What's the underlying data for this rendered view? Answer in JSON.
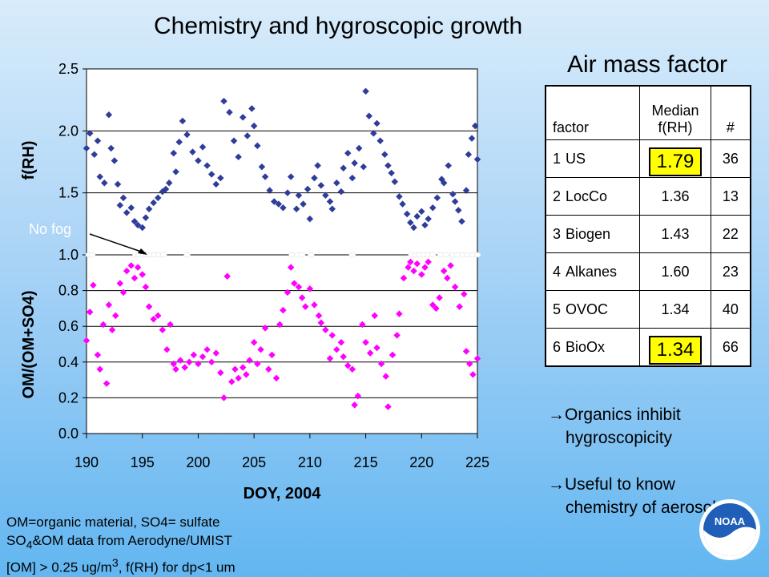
{
  "title": "Chemistry and hygroscopic growth",
  "air_mass": {
    "title": "Air mass factor",
    "headers": [
      "factor",
      "Median f(RH)",
      "#"
    ],
    "rows": [
      {
        "num": "1",
        "name": "US",
        "median": "1.79",
        "count": "36",
        "highlight": true
      },
      {
        "num": "2",
        "name": "LocCo",
        "median": "1.36",
        "count": "13",
        "highlight": false
      },
      {
        "num": "3",
        "name": "Biogen",
        "median": "1.43",
        "count": "22",
        "highlight": false
      },
      {
        "num": "4",
        "name": "Alkanes",
        "median": "1.60",
        "count": "23",
        "highlight": false
      },
      {
        "num": "5",
        "name": "OVOC",
        "median": "1.34",
        "count": "40",
        "highlight": false
      },
      {
        "num": "6",
        "name": "BioOx",
        "median": "1.34",
        "count": "66",
        "highlight": true
      }
    ]
  },
  "bullets": {
    "b1_line1": "Organics inhibit",
    "b1_line2": "hygroscopicity",
    "b2_line1": "Useful to know",
    "b2_line2": "chemistry of aerosol"
  },
  "notes": {
    "line1": "OM=organic material, SO4= sulfate",
    "line2_pre": "SO",
    "line2_sub": "4",
    "line2_post": "&OM data from Aerodyne/UMIST",
    "line3_pre": "[OM] > 0.25 ug/m",
    "line3_sup": "3",
    "line3_post": ",  f(RH) for dp<1 um"
  },
  "logo_text": "NOAA",
  "chart_data": {
    "type": "scatter",
    "xlabel": "DOY, 2004",
    "x_ticks": [
      190,
      195,
      200,
      205,
      210,
      215,
      220,
      225
    ],
    "xlim": [
      190,
      225
    ],
    "annotation": "No fog",
    "annotation_target": {
      "x": 195,
      "y": 1.0
    },
    "panels": [
      {
        "ylabel": "f(RH)",
        "ylim": [
          1.0,
          2.5
        ],
        "y_ticks": [
          "1.0",
          "1.5",
          "2.0",
          "2.5"
        ],
        "color": "#2e3d9a",
        "points": [
          [
            190,
            1.86
          ],
          [
            190.3,
            1.98
          ],
          [
            190.7,
            1.81
          ],
          [
            191,
            1.92
          ],
          [
            191.2,
            1.63
          ],
          [
            191.6,
            1.58
          ],
          [
            192,
            2.13
          ],
          [
            192.2,
            1.86
          ],
          [
            192.5,
            1.76
          ],
          [
            192.8,
            1.57
          ],
          [
            193,
            1.4
          ],
          [
            193.3,
            1.46
          ],
          [
            193.6,
            1.34
          ],
          [
            194,
            1.38
          ],
          [
            194.3,
            1.27
          ],
          [
            194.6,
            1.24
          ],
          [
            195,
            1.22
          ],
          [
            195.3,
            1.3
          ],
          [
            195.6,
            1.37
          ],
          [
            196,
            1.42
          ],
          [
            196.4,
            1.46
          ],
          [
            196.8,
            1.51
          ],
          [
            197.1,
            1.53
          ],
          [
            197.4,
            1.58
          ],
          [
            197.8,
            1.82
          ],
          [
            198,
            1.67
          ],
          [
            198.3,
            1.91
          ],
          [
            198.6,
            2.08
          ],
          [
            199,
            1.97
          ],
          [
            199.5,
            1.83
          ],
          [
            200,
            1.76
          ],
          [
            200.4,
            1.87
          ],
          [
            200.8,
            1.72
          ],
          [
            201.2,
            1.65
          ],
          [
            201.6,
            1.57
          ],
          [
            202,
            1.62
          ],
          [
            202.3,
            2.24
          ],
          [
            202.8,
            2.15
          ],
          [
            203.2,
            1.92
          ],
          [
            203.6,
            1.79
          ],
          [
            204,
            2.11
          ],
          [
            204.4,
            1.96
          ],
          [
            204.8,
            2.18
          ],
          [
            205,
            2.04
          ],
          [
            205.3,
            1.88
          ],
          [
            205.7,
            1.71
          ],
          [
            206,
            1.63
          ],
          [
            206.4,
            1.52
          ],
          [
            206.8,
            1.43
          ],
          [
            207.2,
            1.41
          ],
          [
            207.6,
            1.38
          ],
          [
            208,
            1.5
          ],
          [
            208.3,
            1.63
          ],
          [
            208.8,
            1.37
          ],
          [
            209,
            1.48
          ],
          [
            209.4,
            1.41
          ],
          [
            209.8,
            1.53
          ],
          [
            210,
            1.29
          ],
          [
            210.4,
            1.62
          ],
          [
            210.7,
            1.72
          ],
          [
            211,
            1.56
          ],
          [
            211.4,
            1.48
          ],
          [
            211.8,
            1.43
          ],
          [
            212,
            1.37
          ],
          [
            212.4,
            1.58
          ],
          [
            212.8,
            1.51
          ],
          [
            213,
            1.7
          ],
          [
            213.4,
            1.82
          ],
          [
            213.8,
            1.62
          ],
          [
            214,
            1.74
          ],
          [
            214.4,
            1.86
          ],
          [
            214.8,
            1.71
          ],
          [
            215,
            2.32
          ],
          [
            215.3,
            2.12
          ],
          [
            215.7,
            1.98
          ],
          [
            216,
            2.06
          ],
          [
            216.3,
            1.92
          ],
          [
            216.7,
            1.81
          ],
          [
            217,
            1.72
          ],
          [
            217.3,
            1.66
          ],
          [
            217.6,
            1.59
          ],
          [
            218,
            1.47
          ],
          [
            218.3,
            1.41
          ],
          [
            218.7,
            1.33
          ],
          [
            219,
            1.26
          ],
          [
            219.3,
            1.22
          ],
          [
            219.6,
            1.31
          ],
          [
            220,
            1.35
          ],
          [
            220.3,
            1.24
          ],
          [
            220.6,
            1.29
          ],
          [
            221,
            1.38
          ],
          [
            221.4,
            1.46
          ],
          [
            221.8,
            1.61
          ],
          [
            222,
            1.58
          ],
          [
            222.4,
            1.72
          ],
          [
            222.8,
            1.49
          ],
          [
            223,
            1.43
          ],
          [
            223.3,
            1.36
          ],
          [
            223.6,
            1.27
          ],
          [
            224,
            1.52
          ],
          [
            224.2,
            1.81
          ],
          [
            224.5,
            1.94
          ],
          [
            224.8,
            2.04
          ],
          [
            225,
            1.77
          ]
        ]
      },
      {
        "ylabel": "OM/(OM+SO4)",
        "ylim": [
          0.0,
          1.0
        ],
        "y_ticks": [
          "0.0",
          "0.2",
          "0.4",
          "0.6",
          "0.8",
          "1.0"
        ],
        "color": "#ff00ff",
        "points": [
          [
            190,
            0.52
          ],
          [
            190.3,
            0.68
          ],
          [
            190.6,
            0.83
          ],
          [
            191,
            0.44
          ],
          [
            191.2,
            0.36
          ],
          [
            191.5,
            0.61
          ],
          [
            191.8,
            0.28
          ],
          [
            192,
            0.72
          ],
          [
            192.3,
            0.58
          ],
          [
            192.6,
            0.66
          ],
          [
            193,
            0.84
          ],
          [
            193.3,
            0.79
          ],
          [
            193.6,
            0.91
          ],
          [
            194,
            0.94
          ],
          [
            194.3,
            0.87
          ],
          [
            194.6,
            0.93
          ],
          [
            195,
            0.89
          ],
          [
            195.3,
            0.82
          ],
          [
            195.6,
            0.71
          ],
          [
            196,
            0.64
          ],
          [
            196.4,
            0.66
          ],
          [
            196.8,
            0.58
          ],
          [
            197.2,
            0.47
          ],
          [
            197.5,
            0.61
          ],
          [
            197.8,
            0.39
          ],
          [
            198,
            0.36
          ],
          [
            198.4,
            0.41
          ],
          [
            198.8,
            0.37
          ],
          [
            199.2,
            0.4
          ],
          [
            199.6,
            0.44
          ],
          [
            200,
            0.39
          ],
          [
            200.4,
            0.43
          ],
          [
            200.8,
            0.47
          ],
          [
            201.2,
            0.4
          ],
          [
            201.6,
            0.45
          ],
          [
            202,
            0.34
          ],
          [
            202.3,
            0.2
          ],
          [
            202.6,
            0.88
          ],
          [
            203,
            0.29
          ],
          [
            203.3,
            0.36
          ],
          [
            203.6,
            0.31
          ],
          [
            204,
            0.37
          ],
          [
            204.3,
            0.33
          ],
          [
            204.6,
            0.41
          ],
          [
            205,
            0.51
          ],
          [
            205.3,
            0.39
          ],
          [
            205.6,
            0.47
          ],
          [
            206,
            0.59
          ],
          [
            206.3,
            0.36
          ],
          [
            206.6,
            0.44
          ],
          [
            207,
            0.31
          ],
          [
            207.3,
            0.61
          ],
          [
            207.6,
            0.69
          ],
          [
            208,
            0.79
          ],
          [
            208.3,
            0.93
          ],
          [
            208.6,
            0.84
          ],
          [
            209,
            0.82
          ],
          [
            209.3,
            0.76
          ],
          [
            209.6,
            0.71
          ],
          [
            210,
            0.81
          ],
          [
            210.4,
            0.72
          ],
          [
            210.8,
            0.66
          ],
          [
            211,
            0.62
          ],
          [
            211.4,
            0.58
          ],
          [
            211.8,
            0.42
          ],
          [
            212,
            0.55
          ],
          [
            212.4,
            0.47
          ],
          [
            212.8,
            0.51
          ],
          [
            213,
            0.43
          ],
          [
            213.4,
            0.38
          ],
          [
            213.8,
            0.36
          ],
          [
            214,
            0.16
          ],
          [
            214.3,
            0.21
          ],
          [
            214.7,
            0.61
          ],
          [
            215,
            0.51
          ],
          [
            215.4,
            0.45
          ],
          [
            215.8,
            0.66
          ],
          [
            216,
            0.48
          ],
          [
            216.4,
            0.39
          ],
          [
            216.8,
            0.32
          ],
          [
            217,
            0.15
          ],
          [
            217.4,
            0.44
          ],
          [
            217.8,
            0.55
          ],
          [
            218,
            0.67
          ],
          [
            218.4,
            0.87
          ],
          [
            218.8,
            0.93
          ],
          [
            219,
            0.96
          ],
          [
            219.3,
            0.91
          ],
          [
            219.6,
            0.95
          ],
          [
            220,
            0.89
          ],
          [
            220.3,
            0.93
          ],
          [
            220.6,
            0.96
          ],
          [
            221,
            0.72
          ],
          [
            221.3,
            0.7
          ],
          [
            221.6,
            0.76
          ],
          [
            222,
            0.91
          ],
          [
            222.3,
            0.87
          ],
          [
            222.6,
            0.94
          ],
          [
            223,
            0.82
          ],
          [
            223.4,
            0.71
          ],
          [
            223.8,
            0.78
          ],
          [
            224,
            0.46
          ],
          [
            224.3,
            0.39
          ],
          [
            224.6,
            0.33
          ],
          [
            225,
            0.42
          ]
        ]
      }
    ],
    "white_points_x": [
      190.2,
      190.5,
      194.4,
      194.7,
      195.1,
      195.4,
      195.7,
      196.1,
      196.5,
      196.9,
      199,
      208.4,
      208.9,
      209.3,
      210.1,
      213.8,
      219.1,
      219.5,
      219.8,
      220.2,
      220.6,
      221,
      221.7,
      222.2,
      222.8,
      223.2,
      223.7,
      224.1,
      224.6,
      225
    ]
  }
}
